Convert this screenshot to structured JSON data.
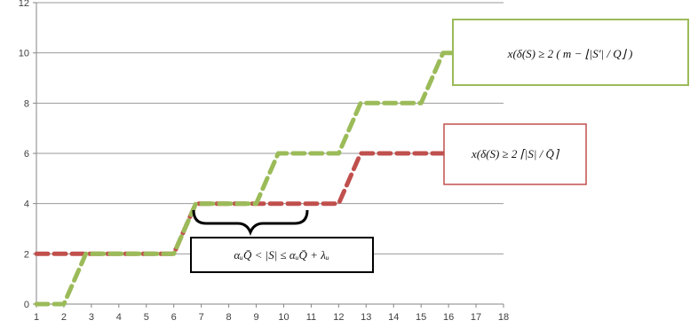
{
  "chart_data": {
    "type": "line",
    "x": [
      1,
      2,
      3,
      4,
      5,
      6,
      7,
      8,
      9,
      10,
      11,
      12,
      13,
      14,
      15,
      16,
      17,
      18
    ],
    "xlim": [
      1,
      18
    ],
    "ylim": [
      0,
      12
    ],
    "yticks": [
      0,
      2,
      4,
      6,
      8,
      10,
      12
    ],
    "xticks": [
      1,
      2,
      3,
      4,
      5,
      6,
      7,
      8,
      9,
      10,
      11,
      12,
      13,
      14,
      15,
      16,
      17,
      18
    ],
    "grid": "horizontal",
    "series": [
      {
        "color": "#c0504d",
        "style": "dashed",
        "points": [
          [
            1,
            2
          ],
          [
            6,
            2
          ],
          [
            6.8,
            4
          ],
          [
            12,
            4
          ],
          [
            12.8,
            6
          ],
          [
            16,
            6
          ]
        ]
      },
      {
        "color": "#9bbb59",
        "style": "dashed",
        "points": [
          [
            1,
            0
          ],
          [
            2,
            0
          ],
          [
            2.8,
            2
          ],
          [
            6,
            2
          ],
          [
            6.8,
            4
          ],
          [
            9,
            4
          ],
          [
            9.8,
            6
          ],
          [
            12,
            6
          ],
          [
            12.8,
            8
          ],
          [
            15,
            8
          ],
          [
            15.8,
            10
          ],
          [
            16.2,
            10
          ]
        ]
      }
    ],
    "annotations": {
      "green_box": {
        "text": "x(δ(S) ≥ 2 ( m − ⌊|S′| / Q⌋ )",
        "border": "#9bbb59"
      },
      "red_box": {
        "text": "x(δ(S) ≥ 2 ⌈|S| / Q̄⌉",
        "border": "#c0504d"
      },
      "brace_box": {
        "text": "αᵤQ̄ < |S| ≤ αᵤQ̄ + λᵤ",
        "border": "#000000"
      }
    }
  }
}
